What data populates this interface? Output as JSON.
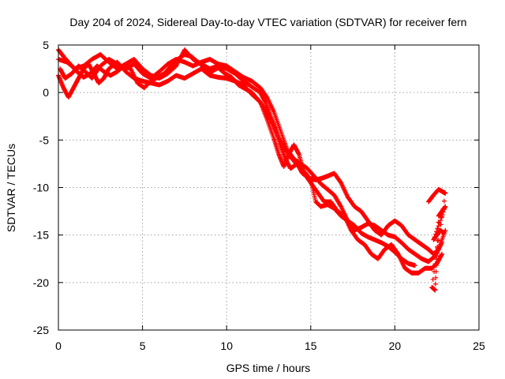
{
  "chart_data": {
    "type": "scatter",
    "title": "Day 204 of 2024, Sidereal Day-to-day VTEC variation (SDTVAR) for receiver fern",
    "xlabel": "GPS time / hours",
    "ylabel": "SDTVAR / TECUs",
    "xlim": [
      0,
      25
    ],
    "ylim": [
      -25,
      5
    ],
    "xticks": [
      0,
      5,
      10,
      15,
      20,
      25
    ],
    "yticks": [
      -25,
      -20,
      -15,
      -10,
      -5,
      0,
      5
    ],
    "grid": true,
    "marker": "+",
    "color": "#ff0000",
    "series": [
      {
        "name": "track-a",
        "points": [
          [
            0.0,
            3.5
          ],
          [
            0.5,
            3.2
          ],
          [
            1.0,
            2.5
          ],
          [
            1.5,
            2.8
          ],
          [
            2.0,
            3.5
          ],
          [
            2.5,
            4.0
          ],
          [
            3.0,
            3.2
          ],
          [
            3.5,
            2.5
          ],
          [
            4.0,
            3.0
          ],
          [
            4.5,
            3.5
          ],
          [
            5.0,
            2.5
          ],
          [
            5.5,
            1.8
          ],
          [
            6.0,
            1.5
          ],
          [
            6.5,
            2.0
          ],
          [
            7.0,
            2.8
          ],
          [
            7.5,
            4.5
          ],
          [
            8.0,
            3.5
          ],
          [
            8.5,
            3.0
          ],
          [
            9.0,
            2.5
          ],
          [
            9.5,
            2.8
          ],
          [
            10.0,
            2.5
          ],
          [
            10.5,
            2.0
          ],
          [
            11.0,
            1.2
          ],
          [
            11.5,
            0.6
          ],
          [
            12.0,
            0.0
          ],
          [
            12.3,
            -1.0
          ],
          [
            12.6,
            -2.5
          ],
          [
            12.9,
            -3.8
          ],
          [
            13.2,
            -5.5
          ],
          [
            13.5,
            -7.0
          ],
          [
            13.8,
            -8.0
          ],
          [
            14.2,
            -7.5
          ],
          [
            14.5,
            -8.5
          ],
          [
            14.9,
            -9.0
          ],
          [
            15.3,
            -9.2
          ],
          [
            15.7,
            -9.0
          ],
          [
            16.0,
            -8.8
          ],
          [
            16.4,
            -8.5
          ],
          [
            16.8,
            -9.5
          ],
          [
            17.2,
            -11.0
          ],
          [
            17.6,
            -12.0
          ],
          [
            18.0,
            -12.5
          ],
          [
            18.4,
            -13.5
          ],
          [
            18.8,
            -14.5
          ],
          [
            19.2,
            -15.0
          ],
          [
            19.6,
            -14.0
          ],
          [
            20.0,
            -13.5
          ],
          [
            20.4,
            -14.0
          ],
          [
            20.8,
            -15.0
          ],
          [
            21.2,
            -15.5
          ],
          [
            21.6,
            -16.0
          ],
          [
            22.0,
            -16.5
          ],
          [
            22.3,
            -17.0
          ],
          [
            22.6,
            -16.5
          ],
          [
            23.0,
            -14.5
          ]
        ]
      },
      {
        "name": "track-b",
        "points": [
          [
            0.0,
            1.8
          ],
          [
            0.3,
            0.5
          ],
          [
            0.6,
            -0.5
          ],
          [
            0.9,
            0.5
          ],
          [
            1.2,
            1.5
          ],
          [
            1.5,
            2.5
          ],
          [
            1.8,
            3.0
          ],
          [
            2.1,
            2.0
          ],
          [
            2.4,
            1.0
          ],
          [
            2.7,
            1.5
          ],
          [
            3.0,
            2.5
          ],
          [
            3.5,
            3.2
          ],
          [
            4.0,
            2.2
          ],
          [
            4.5,
            1.5
          ],
          [
            5.0,
            1.2
          ],
          [
            5.5,
            1.0
          ],
          [
            6.0,
            0.8
          ],
          [
            6.5,
            1.2
          ],
          [
            7.0,
            1.8
          ],
          [
            7.5,
            1.5
          ],
          [
            8.0,
            2.0
          ],
          [
            8.5,
            2.5
          ],
          [
            9.0,
            1.8
          ],
          [
            9.5,
            1.6
          ],
          [
            10.0,
            1.5
          ],
          [
            10.5,
            1.2
          ],
          [
            11.0,
            0.8
          ],
          [
            11.5,
            -0.2
          ],
          [
            12.0,
            -1.0
          ],
          [
            12.4,
            -2.8
          ],
          [
            12.8,
            -4.8
          ],
          [
            13.1,
            -6.5
          ],
          [
            13.4,
            -7.8
          ],
          [
            13.7,
            -6.5
          ],
          [
            14.0,
            -5.5
          ],
          [
            14.3,
            -6.5
          ],
          [
            14.6,
            -8.5
          ],
          [
            15.0,
            -9.5
          ],
          [
            15.4,
            -10.5
          ],
          [
            15.8,
            -11.5
          ],
          [
            16.2,
            -11.5
          ],
          [
            16.6,
            -12.5
          ],
          [
            17.0,
            -13.0
          ],
          [
            17.4,
            -14.5
          ],
          [
            17.8,
            -15.5
          ],
          [
            18.2,
            -16.0
          ],
          [
            18.6,
            -17.0
          ],
          [
            19.0,
            -17.5
          ],
          [
            19.4,
            -16.5
          ],
          [
            19.8,
            -16.0
          ],
          [
            20.2,
            -17.0
          ],
          [
            20.6,
            -18.5
          ],
          [
            21.0,
            -19.0
          ],
          [
            21.4,
            -19.0
          ],
          [
            21.8,
            -18.5
          ],
          [
            22.2,
            -18.5
          ],
          [
            22.5,
            -18.0
          ],
          [
            22.8,
            -17.0
          ]
        ]
      },
      {
        "name": "track-c",
        "points": [
          [
            0.1,
            2.5
          ],
          [
            0.4,
            1.5
          ],
          [
            0.8,
            2.0
          ],
          [
            1.2,
            2.8
          ],
          [
            1.6,
            2.2
          ],
          [
            2.0,
            1.5
          ],
          [
            2.5,
            2.8
          ],
          [
            3.0,
            3.5
          ],
          [
            3.5,
            3.0
          ],
          [
            4.0,
            2.5
          ],
          [
            4.5,
            3.0
          ],
          [
            5.0,
            2.0
          ],
          [
            5.5,
            1.5
          ],
          [
            6.0,
            2.2
          ],
          [
            6.5,
            3.0
          ],
          [
            7.0,
            3.5
          ],
          [
            7.5,
            3.2
          ],
          [
            8.0,
            2.8
          ],
          [
            8.5,
            3.2
          ],
          [
            9.0,
            3.5
          ],
          [
            9.5,
            3.0
          ],
          [
            10.0,
            2.8
          ],
          [
            10.5,
            2.2
          ],
          [
            11.0,
            1.6
          ],
          [
            11.5,
            1.2
          ],
          [
            12.0,
            0.5
          ],
          [
            12.4,
            -0.5
          ],
          [
            12.8,
            -2.0
          ],
          [
            13.2,
            -4.0
          ],
          [
            13.6,
            -6.0
          ],
          [
            14.0,
            -7.0
          ],
          [
            14.4,
            -7.5
          ],
          [
            14.8,
            -8.0
          ],
          [
            15.2,
            -8.8
          ],
          [
            15.6,
            -9.6
          ],
          [
            16.0,
            -10.2
          ],
          [
            16.4,
            -10.8
          ],
          [
            16.8,
            -12.0
          ],
          [
            17.2,
            -13.5
          ],
          [
            17.6,
            -14.5
          ],
          [
            18.0,
            -14.2
          ],
          [
            18.4,
            -13.8
          ],
          [
            18.8,
            -14.0
          ],
          [
            19.2,
            -14.5
          ],
          [
            19.6,
            -15.0
          ],
          [
            20.0,
            -15.2
          ],
          [
            20.4,
            -15.8
          ],
          [
            20.8,
            -16.5
          ],
          [
            21.2,
            -17.0
          ],
          [
            21.6,
            -17.5
          ],
          [
            22.0,
            -17.8
          ],
          [
            22.4,
            -17.2
          ],
          [
            22.8,
            -15.8
          ]
        ]
      },
      {
        "name": "track-d",
        "points": [
          [
            0.0,
            4.5
          ],
          [
            0.3,
            3.8
          ],
          [
            0.7,
            3.0
          ],
          [
            1.1,
            2.2
          ],
          [
            1.5,
            1.6
          ],
          [
            1.9,
            2.0
          ],
          [
            2.3,
            2.8
          ],
          [
            2.7,
            2.2
          ],
          [
            3.1,
            1.8
          ],
          [
            3.5,
            2.2
          ],
          [
            3.9,
            2.8
          ],
          [
            4.3,
            2.5
          ],
          [
            4.7,
            1.0
          ],
          [
            5.1,
            0.5
          ],
          [
            5.5,
            1.2
          ],
          [
            5.9,
            1.6
          ],
          [
            6.3,
            2.0
          ],
          [
            6.7,
            2.8
          ],
          [
            7.1,
            3.5
          ],
          [
            7.5,
            4.0
          ],
          [
            7.9,
            3.8
          ],
          [
            8.3,
            3.2
          ],
          [
            8.7,
            2.6
          ],
          [
            9.1,
            2.2
          ],
          [
            9.5,
            2.6
          ],
          [
            9.9,
            2.0
          ],
          [
            10.3,
            1.6
          ],
          [
            10.7,
            0.8
          ],
          [
            11.1,
            0.4
          ],
          [
            11.5,
            0.0
          ],
          [
            11.9,
            -0.8
          ],
          [
            12.3,
            -1.8
          ],
          [
            12.7,
            -3.2
          ],
          [
            13.1,
            -4.8
          ],
          [
            13.5,
            -6.0
          ],
          [
            13.9,
            -7.0
          ],
          [
            14.3,
            -7.8
          ],
          [
            14.7,
            -8.5
          ],
          [
            15.0,
            -9.2
          ],
          [
            15.3,
            -11.5
          ],
          [
            15.6,
            -12.0
          ],
          [
            16.0,
            -11.8
          ],
          [
            16.4,
            -12.2
          ],
          [
            16.8,
            -13.0
          ],
          [
            17.2,
            -13.5
          ],
          [
            17.6,
            -14.0
          ],
          [
            18.0,
            -14.8
          ],
          [
            18.4,
            -15.2
          ],
          [
            18.8,
            -15.5
          ],
          [
            19.2,
            -15.8
          ],
          [
            19.6,
            -16.2
          ],
          [
            20.0,
            -16.8
          ],
          [
            20.4,
            -17.5
          ],
          [
            20.8,
            -18.0
          ],
          [
            21.2,
            -18.2
          ]
        ]
      },
      {
        "name": "track-e",
        "points": [
          [
            22.0,
            -11.5
          ],
          [
            22.3,
            -10.8
          ],
          [
            22.6,
            -10.2
          ],
          [
            22.9,
            -10.5
          ],
          [
            23.0,
            -10.6
          ],
          [
            22.2,
            -20.5
          ],
          [
            22.4,
            -20.8
          ],
          [
            22.6,
            -13.0
          ],
          [
            22.8,
            -12.5
          ],
          [
            23.0,
            -12.0
          ],
          [
            22.3,
            -15.5
          ],
          [
            22.5,
            -15.0
          ],
          [
            22.7,
            -14.5
          ],
          [
            22.9,
            -14.8
          ]
        ]
      }
    ]
  }
}
